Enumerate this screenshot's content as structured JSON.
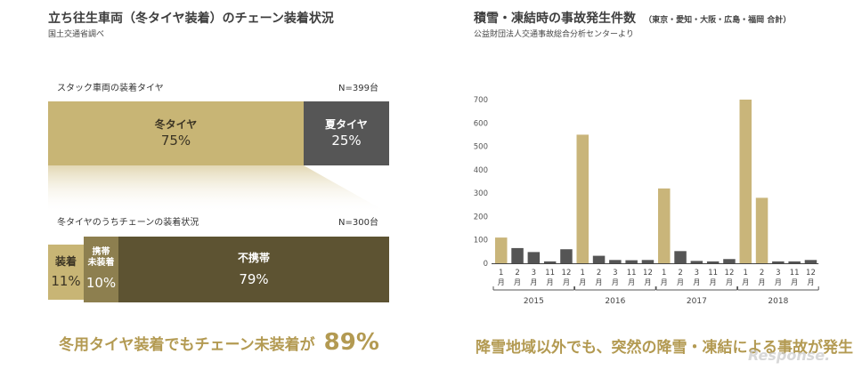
{
  "left": {
    "title": "立ち往生車両（冬タイヤ装着）のチェーン装着状況",
    "source": "国土交通省調べ",
    "bar1": {
      "label": "スタック車両の装着タイヤ",
      "n": "N=399台",
      "segments": [
        {
          "name": "冬タイヤ",
          "value": "75%",
          "pct": 75,
          "color": "#c8b575"
        },
        {
          "name": "夏タイヤ",
          "value": "25%",
          "pct": 25,
          "color": "#565656"
        }
      ]
    },
    "bar2": {
      "label": "冬タイヤのうちチェーンの装着状況",
      "n": "N=300台",
      "segments": [
        {
          "name": "装着",
          "value": "11%",
          "pct": 11,
          "color": "#c8b575"
        },
        {
          "name": "携帯\n未装着",
          "value": "10%",
          "pct": 10,
          "color": "#8d7f4f"
        },
        {
          "name": "不携帯",
          "value": "79%",
          "pct": 79,
          "color": "#5d5332"
        }
      ]
    },
    "conclusion_prefix": "冬用タイヤ装着でもチェーン未装着が",
    "conclusion_value": "89%"
  },
  "right": {
    "title": "積雪・凍結時の事故発生件数",
    "title_note": "（東京・愛知・大阪・広島・福岡 合計）",
    "source": "公益財団法人交通事故総合分析センターより",
    "conclusion": "降雪地域以外でも、突然の降雪・凍結による事故が発生",
    "watermark": "Response."
  },
  "chart_data": {
    "type": "bar",
    "title": "積雪・凍結時の事故発生件数",
    "ylim": [
      0,
      700
    ],
    "yticks": [
      0,
      100,
      200,
      300,
      400,
      500,
      600,
      700
    ],
    "month_unit": "月",
    "groups": [
      {
        "year": "2015",
        "months": [
          "1",
          "2",
          "3",
          "11",
          "12"
        ],
        "values": [
          110,
          65,
          48,
          8,
          60
        ]
      },
      {
        "year": "2016",
        "months": [
          "1",
          "2",
          "3",
          "11",
          "12"
        ],
        "values": [
          550,
          32,
          14,
          13,
          14
        ]
      },
      {
        "year": "2017",
        "months": [
          "1",
          "2",
          "3",
          "11",
          "12"
        ],
        "values": [
          320,
          52,
          10,
          8,
          18
        ]
      },
      {
        "year": "2018",
        "months": [
          "1",
          "2",
          "3",
          "11",
          "12"
        ],
        "values": [
          700,
          280,
          8,
          8,
          14
        ]
      }
    ],
    "highlight_color": "#c9b57a",
    "base_color": "#555555"
  }
}
